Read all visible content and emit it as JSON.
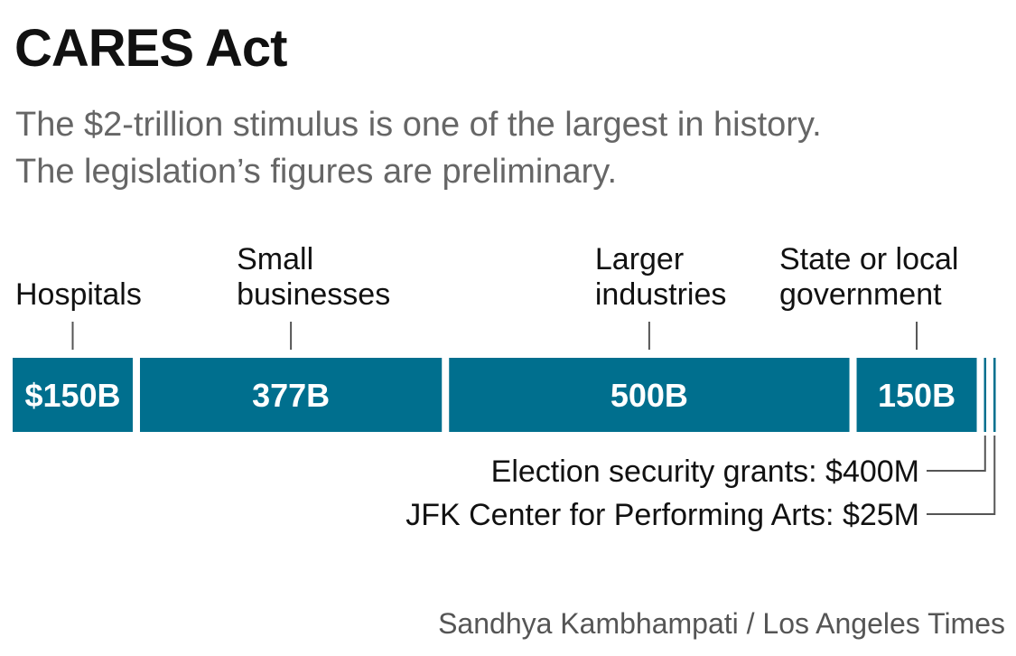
{
  "title": "CARES Act",
  "subtitle": [
    "The $2-trillion stimulus is one of the largest in history.",
    "The legislation’s figures are preliminary."
  ],
  "credit": "Sandhya Kambhampati / Los Angeles Times",
  "chart_data": {
    "type": "bar",
    "orientation": "horizontal-stacked",
    "unit": "billion USD",
    "colors": {
      "bar": "#006f8e",
      "bar_label": "#ffffff",
      "leader": "#555555"
    },
    "segments": [
      {
        "category": [
          "Hospitals"
        ],
        "value": 150,
        "label": "$150B"
      },
      {
        "category": [
          "Small",
          "businesses"
        ],
        "value": 377,
        "label": "377B"
      },
      {
        "category": [
          "Larger",
          "industries"
        ],
        "value": 500,
        "label": "500B"
      },
      {
        "category": [
          "State or local",
          "government"
        ],
        "value": 150,
        "label": "150B"
      },
      {
        "category": [],
        "value": 0.4,
        "label": "Election security grants: $400M"
      },
      {
        "category": [],
        "value": 0.025,
        "label": "JFK Center for Performing Arts: $25M"
      }
    ]
  }
}
